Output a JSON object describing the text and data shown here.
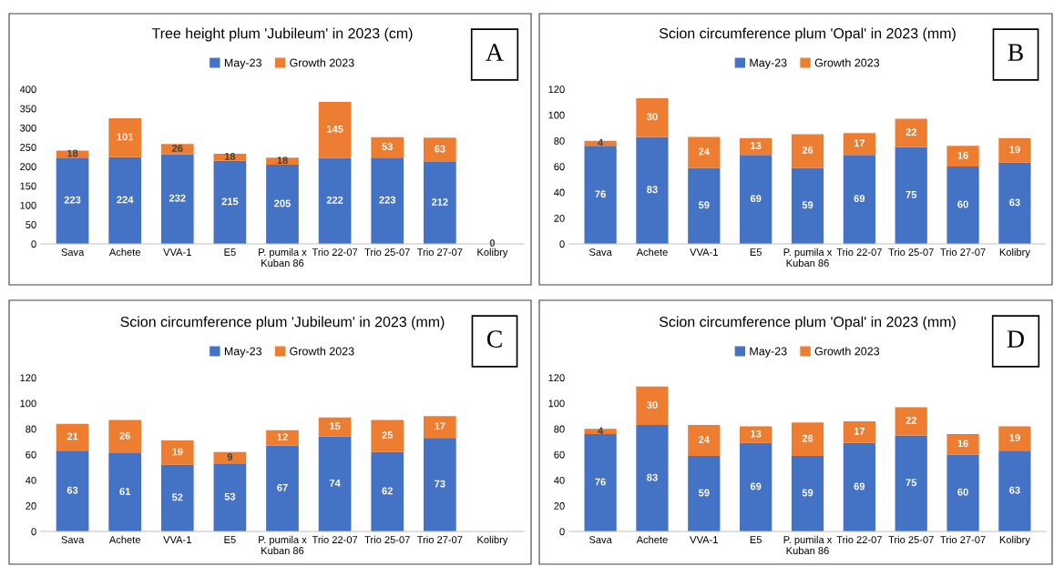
{
  "chart_data": [
    {
      "type": "bar",
      "stacked": true,
      "title": "Tree height plum 'Jubileum' in 2023 (cm)",
      "annotations": [
        "A"
      ],
      "categories": [
        "Sava",
        "Achete",
        "VVA-1",
        "E5",
        "P. pumila x\nKuban 86",
        "Trio 22-07",
        "Trio 25-07",
        "Trio 27-07",
        "Kolibry"
      ],
      "ylim": [
        0,
        400
      ],
      "yticks": [
        0,
        50,
        100,
        150,
        200,
        250,
        300,
        350,
        400
      ],
      "legend": "top",
      "data_labels": true,
      "series": [
        {
          "name": "May-23",
          "color": "#4472c4",
          "values": [
            223,
            224,
            232,
            215,
            205,
            222,
            223,
            212,
            0
          ]
        },
        {
          "name": "Growth 2023",
          "color": "#ed7d31",
          "values": [
            18,
            101,
            26,
            18,
            18,
            145,
            53,
            63,
            null
          ]
        }
      ]
    },
    {
      "type": "bar",
      "stacked": true,
      "title": "Scion circumference plum 'Opal' in 2023 (mm)",
      "annotations": [
        "B"
      ],
      "categories": [
        "Sava",
        "Achete",
        "VVA-1",
        "E5",
        "P. pumila x\nKuban 86",
        "Trio 22-07",
        "Trio 25-07",
        "Trio 27-07",
        "Kolibry"
      ],
      "ylim": [
        0,
        120
      ],
      "yticks": [
        0,
        20,
        40,
        60,
        80,
        100,
        120
      ],
      "legend": "top",
      "data_labels": true,
      "series": [
        {
          "name": "May-23",
          "color": "#4472c4",
          "values": [
            76,
            83,
            59,
            69,
            59,
            69,
            75,
            60,
            63
          ]
        },
        {
          "name": "Growth 2023",
          "color": "#ed7d31",
          "values": [
            4,
            30,
            24,
            13,
            26,
            17,
            22,
            16,
            19
          ]
        }
      ]
    },
    {
      "type": "bar",
      "stacked": true,
      "title": "Scion circumference plum 'Jubileum' in 2023 (mm)",
      "annotations": [
        "C"
      ],
      "categories": [
        "Sava",
        "Achete",
        "VVA-1",
        "E5",
        "P. pumila x\nKuban 86",
        "Trio 22-07",
        "Trio 25-07",
        "Trio 27-07",
        "Kolibry"
      ],
      "ylim": [
        0,
        120
      ],
      "yticks": [
        0,
        20,
        40,
        60,
        80,
        100,
        120
      ],
      "legend": "top",
      "data_labels": true,
      "series": [
        {
          "name": "May-23",
          "color": "#4472c4",
          "values": [
            63,
            61,
            52,
            53,
            67,
            74,
            62,
            73,
            null
          ]
        },
        {
          "name": "Growth 2023",
          "color": "#ed7d31",
          "values": [
            21,
            26,
            19,
            9,
            12,
            15,
            25,
            17,
            null
          ]
        }
      ]
    },
    {
      "type": "bar",
      "stacked": true,
      "title": "Scion circumference plum 'Opal' in 2023 (mm)",
      "annotations": [
        "D"
      ],
      "categories": [
        "Sava",
        "Achete",
        "VVA-1",
        "E5",
        "P. pumila x\nKuban 86",
        "Trio 22-07",
        "Trio 25-07",
        "Trio 27-07",
        "Kolibry"
      ],
      "ylim": [
        0,
        120
      ],
      "yticks": [
        0,
        20,
        40,
        60,
        80,
        100,
        120
      ],
      "legend": "top",
      "data_labels": true,
      "series": [
        {
          "name": "May-23",
          "color": "#4472c4",
          "values": [
            76,
            83,
            59,
            69,
            59,
            69,
            75,
            60,
            63
          ]
        },
        {
          "name": "Growth 2023",
          "color": "#ed7d31",
          "values": [
            4,
            30,
            24,
            13,
            26,
            17,
            22,
            16,
            19
          ]
        }
      ]
    }
  ]
}
